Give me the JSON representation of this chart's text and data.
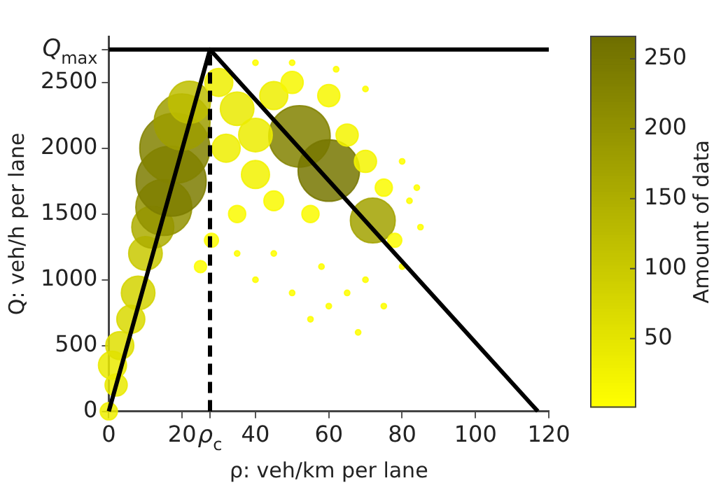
{
  "chart_data": {
    "type": "bubble",
    "xlabel": "ρ: veh/km per lane",
    "ylabel": "Q: veh/h per lane",
    "clabel": "Amount of data",
    "xlim": [
      0,
      120
    ],
    "ylim": [
      0,
      2850
    ],
    "xticks": [
      0,
      20,
      {
        "value": 27.6,
        "label": "ρ$_{c}$"
      },
      40,
      60,
      80,
      100,
      120
    ],
    "yticks": [
      0,
      500,
      1000,
      1500,
      2000,
      2500,
      {
        "value": 2750,
        "label": "Q$_{max}$"
      }
    ],
    "clim": [
      1,
      266
    ],
    "cticks": [
      50,
      100,
      150,
      200,
      250
    ],
    "grid": false,
    "legend": false,
    "ref_lines": [
      {
        "axis": "y",
        "value": 2750,
        "label": null,
        "color": "#000000"
      }
    ],
    "series": [
      {
        "colors": [
          "#efef00",
          "#eaea00",
          "#eaea00",
          "#dfdf00",
          "#d9d900",
          "#d4d400",
          "#c9c900",
          "#adad00",
          "#929200",
          "#7c7c00",
          "#828200",
          "#9d9d00",
          "#bebe00",
          "#828200",
          "#777700",
          "#a2a200",
          "#efef00",
          "#eaea00",
          "#ecec00",
          "#efef00",
          "#efef00",
          "#f2f200",
          "#f7f700",
          "#f7f700",
          "#f5f500",
          "#f5f500",
          "#fafa00",
          "#fbfb00",
          "#fafa00",
          "#f9f900",
          "#fafa00",
          "#fbfb00",
          "#fdfd00",
          "#fefe00",
          "#fefe00",
          "#fefe00",
          "#fefe00",
          "#fefe00",
          "#fefe00",
          "#fefe00",
          "#fefe00",
          "#fefe00",
          "#fefe00",
          "#fefe00",
          "#fefe00",
          "#fefe00",
          "#fefe00",
          "#fefe00",
          "#fefe00",
          "#fefe00",
          "#fefe00",
          "#fefe00",
          "#fefe00"
        ],
        "x": [
          0,
          2,
          1,
          3,
          6,
          8,
          10,
          12,
          15,
          17,
          18,
          20,
          22,
          52,
          60,
          72,
          30,
          35,
          40,
          45,
          32,
          40,
          50,
          60,
          65,
          70,
          75,
          78,
          55,
          45,
          35,
          28,
          25,
          40,
          50,
          60,
          55,
          65,
          70,
          75,
          80,
          85,
          82,
          68,
          45,
          35,
          58,
          62,
          70,
          50,
          40,
          80,
          84
        ],
        "values": [
          0,
          200,
          350,
          500,
          700,
          900,
          1200,
          1400,
          1550,
          1750,
          2000,
          2200,
          2350,
          2090,
          1830,
          1450,
          2500,
          2300,
          2100,
          2400,
          2000,
          1800,
          2500,
          2400,
          2100,
          1900,
          1700,
          1300,
          1500,
          1600,
          1500,
          1300,
          1100,
          1000,
          900,
          800,
          700,
          900,
          1000,
          800,
          1100,
          1400,
          1600,
          600,
          1200,
          1200,
          1100,
          2600,
          2450,
          2650,
          2650,
          1900,
          1700
        ],
        "sizes": [
          0.06,
          0.1,
          0.16,
          0.16,
          0.16,
          0.23,
          0.23,
          0.36,
          0.64,
          1,
          1,
          0.64,
          0.36,
          0.77,
          0.77,
          0.41,
          0.16,
          0.23,
          0.23,
          0.16,
          0.16,
          0.16,
          0.1,
          0.1,
          0.1,
          0.1,
          0.06,
          0.04,
          0.06,
          0.08,
          0.06,
          0.04,
          0.03,
          0.006,
          0.006,
          0.006,
          0.006,
          0.006,
          0.006,
          0.006,
          0.006,
          0.006,
          0.006,
          0.006,
          0.006,
          0.006,
          0.006,
          0.006,
          0.006,
          0.006,
          0.006,
          0.006,
          0.006
        ],
        "cvalues": [
          30,
          40,
          40,
          60,
          70,
          80,
          100,
          150,
          200,
          240,
          230,
          180,
          120,
          230,
          250,
          170,
          30,
          40,
          35,
          30,
          30,
          25,
          15,
          15,
          20,
          20,
          10,
          8,
          10,
          12,
          10,
          8,
          5,
          2,
          2,
          2,
          2,
          2,
          2,
          2,
          2,
          2,
          2,
          2,
          2,
          2,
          2,
          2,
          2,
          2,
          2,
          2,
          2
        ]
      },
      {
        "type": "line",
        "color": "#000000",
        "line_style": "solid",
        "x": [
          0,
          27.6,
          117
        ],
        "values": [
          0,
          2750,
          0
        ]
      },
      {
        "type": "line",
        "color": "#000000",
        "line_style": "dashed",
        "x": [
          27.6,
          27.6
        ],
        "values": [
          0,
          2750
        ]
      }
    ]
  }
}
